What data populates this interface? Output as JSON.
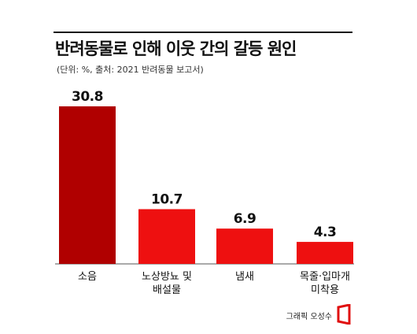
{
  "chart_data": {
    "type": "bar",
    "title": "반려동물로 인해 이웃 간의 갈등 원인",
    "subtitle": "(단위: %, 출처: 2021 반려동물 보고서)",
    "categories": [
      "소음",
      "노상방뇨 및 배설물",
      "냄새",
      "목줄·입마개 미착용"
    ],
    "category_lines": [
      [
        "소음"
      ],
      [
        "노상방뇨 및",
        "배설물"
      ],
      [
        "냄새"
      ],
      [
        "목줄·입마개",
        "미착용"
      ]
    ],
    "values": [
      30.8,
      10.7,
      6.9,
      4.3
    ],
    "value_labels": [
      "30.8",
      "10.7",
      "6.9",
      "4.3"
    ],
    "colors": [
      "#b00000",
      "#ee1010",
      "#ee1010",
      "#ee1010"
    ],
    "ylim": [
      0,
      30.8
    ],
    "grid": false,
    "legend": "none"
  },
  "credit": "그래픽 오성수",
  "logo": {
    "icon": "red-open-square-logo",
    "color": "#e01010"
  }
}
